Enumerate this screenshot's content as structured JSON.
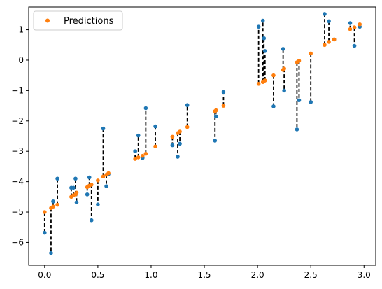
{
  "chart_data": {
    "type": "scatter",
    "xlim": [
      -0.15,
      3.11
    ],
    "ylim": [
      -6.75,
      1.75
    ],
    "x_ticks": [
      "0.0",
      "0.5",
      "1.0",
      "1.5",
      "2.0",
      "2.5",
      "3.0"
    ],
    "y_ticks": [
      "−6",
      "−5",
      "−4",
      "−3",
      "−2",
      "−1",
      "0",
      "1"
    ],
    "x_tick_values": [
      0.0,
      0.5,
      1.0,
      1.5,
      2.0,
      2.5,
      3.0
    ],
    "y_tick_values": [
      -6,
      -5,
      -4,
      -3,
      -2,
      -1,
      0,
      1
    ],
    "legend": {
      "label": "Predictions",
      "position": "upper-left"
    },
    "colors": {
      "actual": "#1f77b4",
      "prediction": "#ff7f0e",
      "residual": "#000000"
    },
    "series": [
      {
        "name": "Predictions",
        "role": "predicted",
        "points": [
          [
            0.0,
            -5.0
          ],
          [
            0.06,
            -4.87
          ],
          [
            0.08,
            -4.82
          ],
          [
            0.12,
            -4.76
          ],
          [
            0.25,
            -4.5
          ],
          [
            0.27,
            -4.45
          ],
          [
            0.29,
            -4.42
          ],
          [
            0.3,
            -4.36
          ],
          [
            0.4,
            -4.18
          ],
          [
            0.42,
            -4.13
          ],
          [
            0.44,
            -4.1
          ],
          [
            0.5,
            -3.96
          ],
          [
            0.55,
            -3.83
          ],
          [
            0.58,
            -3.77
          ],
          [
            0.6,
            -3.72
          ],
          [
            0.85,
            -3.25
          ],
          [
            0.88,
            -3.2
          ],
          [
            0.92,
            -3.15
          ],
          [
            0.95,
            -3.08
          ],
          [
            1.04,
            -2.84
          ],
          [
            1.2,
            -2.52
          ],
          [
            1.25,
            -2.4
          ],
          [
            1.27,
            -2.35
          ],
          [
            1.34,
            -2.2
          ],
          [
            1.6,
            -1.68
          ],
          [
            1.61,
            -1.65
          ],
          [
            1.68,
            -1.5
          ],
          [
            2.01,
            -0.78
          ],
          [
            2.05,
            -0.72
          ],
          [
            2.06,
            -0.69
          ],
          [
            2.07,
            -0.67
          ],
          [
            2.15,
            -0.5
          ],
          [
            2.24,
            -0.32
          ],
          [
            2.25,
            -0.28
          ],
          [
            2.37,
            -0.07
          ],
          [
            2.39,
            -0.02
          ],
          [
            2.5,
            0.22
          ],
          [
            2.63,
            0.5
          ],
          [
            2.67,
            0.6
          ],
          [
            2.72,
            0.68
          ],
          [
            2.87,
            1.02
          ],
          [
            2.91,
            1.08
          ],
          [
            2.96,
            1.18
          ]
        ]
      },
      {
        "role": "actual",
        "points": [
          [
            0.0,
            -5.68
          ],
          [
            0.06,
            -6.35
          ],
          [
            0.08,
            -4.65
          ],
          [
            0.12,
            -3.9
          ],
          [
            0.25,
            -4.2
          ],
          [
            0.27,
            -4.2
          ],
          [
            0.29,
            -3.9
          ],
          [
            0.3,
            -4.68
          ],
          [
            0.4,
            -4.42
          ],
          [
            0.42,
            -3.86
          ],
          [
            0.44,
            -5.27
          ],
          [
            0.5,
            -4.75
          ],
          [
            0.55,
            -2.25
          ],
          [
            0.58,
            -4.15
          ],
          [
            0.6,
            -3.75
          ],
          [
            0.85,
            -3.0
          ],
          [
            0.88,
            -2.48
          ],
          [
            0.92,
            -3.22
          ],
          [
            0.95,
            -1.58
          ],
          [
            1.04,
            -2.18
          ],
          [
            1.2,
            -2.8
          ],
          [
            1.25,
            -3.18
          ],
          [
            1.27,
            -2.75
          ],
          [
            1.34,
            -1.48
          ],
          [
            1.6,
            -2.65
          ],
          [
            1.61,
            -1.85
          ],
          [
            1.68,
            -1.05
          ],
          [
            2.01,
            1.1
          ],
          [
            2.05,
            1.3
          ],
          [
            2.06,
            0.72
          ],
          [
            2.07,
            0.3
          ],
          [
            2.15,
            -1.52
          ],
          [
            2.24,
            0.37
          ],
          [
            2.25,
            -1.0
          ],
          [
            2.37,
            -2.28
          ],
          [
            2.39,
            -1.32
          ],
          [
            2.5,
            -1.38
          ],
          [
            2.63,
            1.52
          ],
          [
            2.67,
            1.28
          ],
          [
            2.72,
            0.68
          ],
          [
            2.87,
            1.22
          ],
          [
            2.91,
            0.47
          ],
          [
            2.96,
            1.1
          ]
        ]
      }
    ]
  }
}
